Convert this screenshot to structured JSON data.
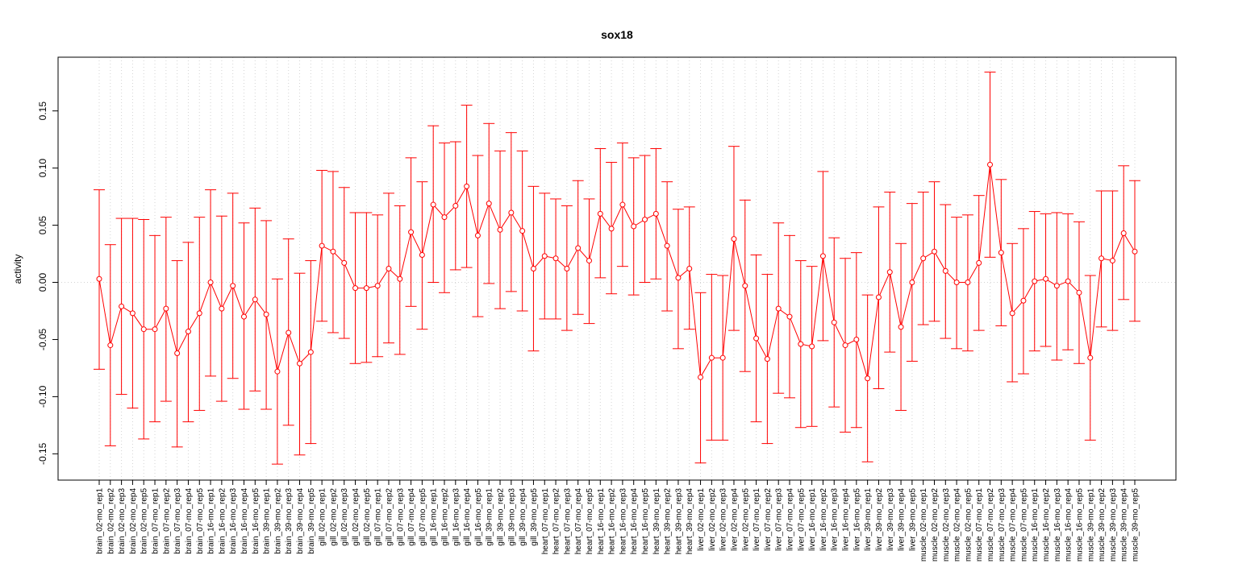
{
  "chart_data": {
    "type": "line",
    "title": "sox18",
    "xlabel": "",
    "ylabel": "activity",
    "ylim": [
      -0.173,
      0.197
    ],
    "yticks": [
      -0.15,
      -0.1,
      -0.05,
      0.0,
      0.05,
      0.1,
      0.15
    ],
    "ytick_labels": [
      "-0.15",
      "-0.10",
      "-0.05",
      "0.00",
      "0.05",
      "0.10",
      "0.15"
    ],
    "grid": true,
    "reference_line_y": 0,
    "colors": {
      "series": "#ff0000",
      "grid": "#d3d3d3",
      "axis": "#000000"
    },
    "categories": [
      "brain_02-mo_rep1",
      "brain_02-mo_rep2",
      "brain_02-mo_rep3",
      "brain_02-mo_rep4",
      "brain_02-mo_rep5",
      "brain_07-mo_rep1",
      "brain_07-mo_rep2",
      "brain_07-mo_rep3",
      "brain_07-mo_rep4",
      "brain_07-mo_rep5",
      "brain_16-mo_rep1",
      "brain_16-mo_rep2",
      "brain_16-mo_rep3",
      "brain_16-mo_rep4",
      "brain_16-mo_rep5",
      "brain_39-mo_rep1",
      "brain_39-mo_rep2",
      "brain_39-mo_rep3",
      "brain_39-mo_rep4",
      "brain_39-mo_rep5",
      "gill_02-mo_rep1",
      "gill_02-mo_rep2",
      "gill_02-mo_rep3",
      "gill_02-mo_rep4",
      "gill_02-mo_rep5",
      "gill_07-mo_rep1",
      "gill_07-mo_rep2",
      "gill_07-mo_rep3",
      "gill_07-mo_rep4",
      "gill_07-mo_rep5",
      "gill_16-mo_rep1",
      "gill_16-mo_rep2",
      "gill_16-mo_rep3",
      "gill_16-mo_rep4",
      "gill_16-mo_rep5",
      "gill_39-mo_rep1",
      "gill_39-mo_rep2",
      "gill_39-mo_rep3",
      "gill_39-mo_rep4",
      "gill_39-mo_rep5",
      "heart_07-mo_rep1",
      "heart_07-mo_rep2",
      "heart_07-mo_rep3",
      "heart_07-mo_rep4",
      "heart_07-mo_rep5",
      "heart_16-mo_rep1",
      "heart_16-mo_rep2",
      "heart_16-mo_rep3",
      "heart_16-mo_rep4",
      "heart_16-mo_rep5",
      "heart_39-mo_rep1",
      "heart_39-mo_rep2",
      "heart_39-mo_rep3",
      "heart_39-mo_rep4",
      "liver_02-mo_rep1",
      "liver_02-mo_rep2",
      "liver_02-mo_rep3",
      "liver_02-mo_rep4",
      "liver_02-mo_rep5",
      "liver_07-mo_rep1",
      "liver_07-mo_rep2",
      "liver_07-mo_rep3",
      "liver_07-mo_rep4",
      "liver_07-mo_rep5",
      "liver_16-mo_rep1",
      "liver_16-mo_rep2",
      "liver_16-mo_rep3",
      "liver_16-mo_rep4",
      "liver_16-mo_rep5",
      "liver_39-mo_rep1",
      "liver_39-mo_rep2",
      "liver_39-mo_rep3",
      "liver_39-mo_rep4",
      "liver_39-mo_rep5",
      "muscle_02-mo_rep1",
      "muscle_02-mo_rep2",
      "muscle_02-mo_rep3",
      "muscle_02-mo_rep4",
      "muscle_02-mo_rep5",
      "muscle_07-mo_rep1",
      "muscle_07-mo_rep2",
      "muscle_07-mo_rep3",
      "muscle_07-mo_rep4",
      "muscle_07-mo_rep5",
      "muscle_16-mo_rep1",
      "muscle_16-mo_rep2",
      "muscle_16-mo_rep3",
      "muscle_16-mo_rep4",
      "muscle_16-mo_rep5",
      "muscle_39-mo_rep1",
      "muscle_39-mo_rep2",
      "muscle_39-mo_rep3",
      "muscle_39-mo_rep4",
      "muscle_39-mo_rep5"
    ],
    "values": [
      0.003,
      -0.055,
      -0.021,
      -0.027,
      -0.041,
      -0.041,
      -0.023,
      -0.062,
      -0.043,
      -0.027,
      0.0,
      -0.023,
      -0.003,
      -0.03,
      -0.015,
      -0.028,
      -0.078,
      -0.044,
      -0.071,
      -0.061,
      0.032,
      0.027,
      0.017,
      -0.005,
      -0.005,
      -0.003,
      0.012,
      0.003,
      0.044,
      0.024,
      0.068,
      0.057,
      0.067,
      0.084,
      0.041,
      0.069,
      0.046,
      0.061,
      0.045,
      0.012,
      0.023,
      0.021,
      0.012,
      0.03,
      0.019,
      0.06,
      0.047,
      0.068,
      0.049,
      0.055,
      0.06,
      0.032,
      0.004,
      0.012,
      -0.083,
      -0.066,
      -0.066,
      0.038,
      -0.003,
      -0.049,
      -0.067,
      -0.023,
      -0.03,
      -0.054,
      -0.056,
      0.023,
      -0.035,
      -0.055,
      -0.05,
      -0.084,
      -0.013,
      0.009,
      -0.039,
      0.0,
      0.021,
      0.027,
      0.01,
      0.0,
      0.0,
      0.017,
      0.103,
      0.026,
      -0.027,
      -0.016,
      0.001,
      0.003,
      -0.003,
      0.001,
      -0.009,
      -0.066,
      0.021,
      0.019,
      0.043,
      0.027
    ],
    "upper": [
      0.081,
      0.033,
      0.056,
      0.056,
      0.055,
      0.041,
      0.057,
      0.019,
      0.035,
      0.057,
      0.081,
      0.058,
      0.078,
      0.052,
      0.065,
      0.054,
      0.003,
      0.038,
      0.008,
      0.019,
      0.098,
      0.097,
      0.083,
      0.061,
      0.061,
      0.059,
      0.078,
      0.067,
      0.109,
      0.088,
      0.137,
      0.122,
      0.123,
      0.155,
      0.111,
      0.139,
      0.115,
      0.131,
      0.115,
      0.084,
      0.078,
      0.073,
      0.067,
      0.089,
      0.073,
      0.117,
      0.105,
      0.122,
      0.109,
      0.111,
      0.117,
      0.088,
      0.064,
      0.066,
      -0.009,
      0.007,
      0.006,
      0.119,
      0.072,
      0.024,
      0.007,
      0.052,
      0.041,
      0.019,
      0.014,
      0.097,
      0.039,
      0.021,
      0.026,
      -0.011,
      0.066,
      0.079,
      0.034,
      0.069,
      0.079,
      0.088,
      0.068,
      0.057,
      0.059,
      0.076,
      0.184,
      0.09,
      0.034,
      0.047,
      0.062,
      0.06,
      0.061,
      0.06,
      0.053,
      0.006,
      0.08,
      0.08,
      0.102,
      0.089
    ],
    "lower": [
      -0.076,
      -0.143,
      -0.098,
      -0.11,
      -0.137,
      -0.122,
      -0.104,
      -0.144,
      -0.122,
      -0.112,
      -0.082,
      -0.104,
      -0.084,
      -0.111,
      -0.095,
      -0.111,
      -0.159,
      -0.125,
      -0.151,
      -0.141,
      -0.034,
      -0.044,
      -0.049,
      -0.071,
      -0.07,
      -0.065,
      -0.053,
      -0.063,
      -0.021,
      -0.041,
      0.0,
      -0.009,
      0.011,
      0.013,
      -0.03,
      -0.001,
      -0.023,
      -0.008,
      -0.025,
      -0.06,
      -0.032,
      -0.032,
      -0.042,
      -0.028,
      -0.036,
      0.004,
      -0.01,
      0.014,
      -0.011,
      0.0,
      0.003,
      -0.025,
      -0.058,
      -0.041,
      -0.158,
      -0.138,
      -0.138,
      -0.042,
      -0.078,
      -0.122,
      -0.141,
      -0.097,
      -0.101,
      -0.127,
      -0.126,
      -0.051,
      -0.109,
      -0.131,
      -0.127,
      -0.157,
      -0.093,
      -0.061,
      -0.112,
      -0.069,
      -0.037,
      -0.034,
      -0.049,
      -0.058,
      -0.06,
      -0.042,
      0.022,
      -0.038,
      -0.087,
      -0.08,
      -0.06,
      -0.056,
      -0.068,
      -0.059,
      -0.071,
      -0.138,
      -0.039,
      -0.042,
      -0.015,
      -0.034
    ]
  }
}
